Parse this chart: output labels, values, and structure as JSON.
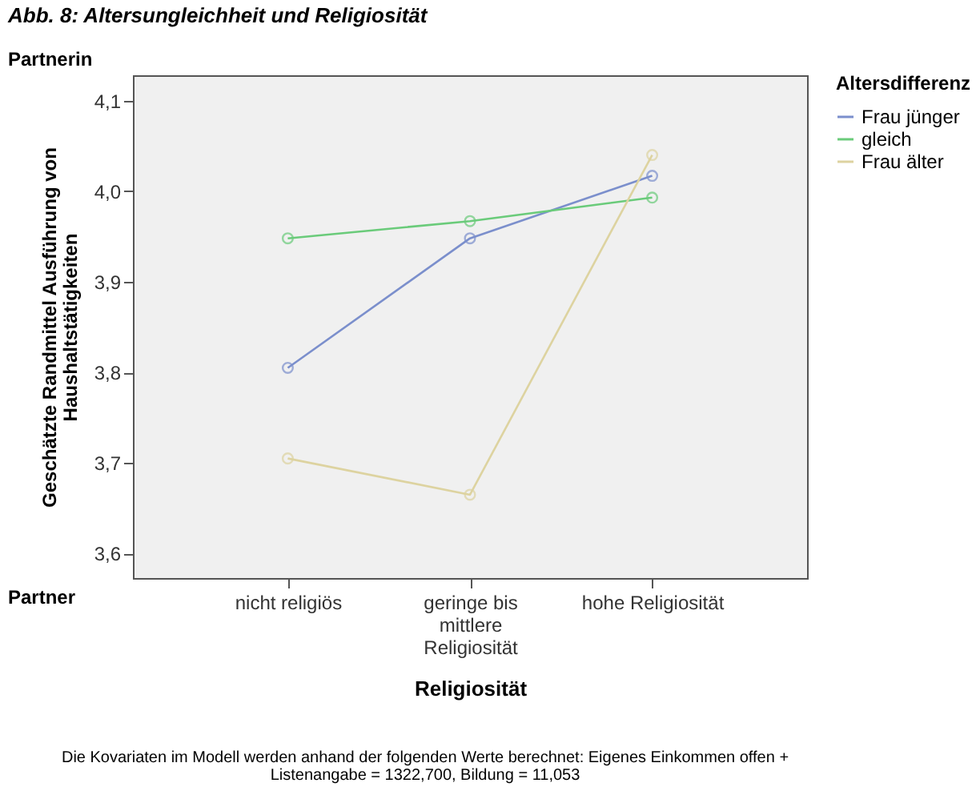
{
  "chart_data": {
    "type": "line",
    "title": "Abb. 8: Altersungleichheit und Religiosität",
    "xlabel": "Religiosität",
    "ylabel": "Geschätzte Randmittel Ausführung von Haushaltstätigkeiten",
    "legend_title": "Altersdifferenz",
    "categories": [
      "nicht religiös",
      "geringe bis\nmittlere\nReligiosität",
      "hohe Religiosität"
    ],
    "series": [
      {
        "name": "Frau jünger",
        "color": "#7b8fcc",
        "values": [
          3.805,
          3.948,
          4.017
        ]
      },
      {
        "name": "gleich",
        "color": "#6acb7a",
        "values": [
          3.948,
          3.967,
          3.993
        ]
      },
      {
        "name": "Frau älter",
        "color": "#ddd3a0",
        "values": [
          3.705,
          3.665,
          4.04
        ]
      }
    ],
    "ylim": [
      3.573,
      4.128
    ],
    "yticks": [
      {
        "value": 3.6,
        "label": "3,6"
      },
      {
        "value": 3.7,
        "label": "3,7"
      },
      {
        "value": 3.8,
        "label": "3,8"
      },
      {
        "value": 3.9,
        "label": "3,9"
      },
      {
        "value": 4.0,
        "label": "4,0"
      },
      {
        "value": 4.1,
        "label": "4,1"
      }
    ],
    "annotations": [
      "Partnerin",
      "Partner",
      "Die Kovariaten im Modell werden anhand der folgenden Werte berechnet: Eigenes Einkommen offen + Listenangabe = 1322,700, Bildung = 11,053"
    ],
    "grid": false,
    "legend": "top right",
    "marker": "circle",
    "line_style": "solid"
  }
}
